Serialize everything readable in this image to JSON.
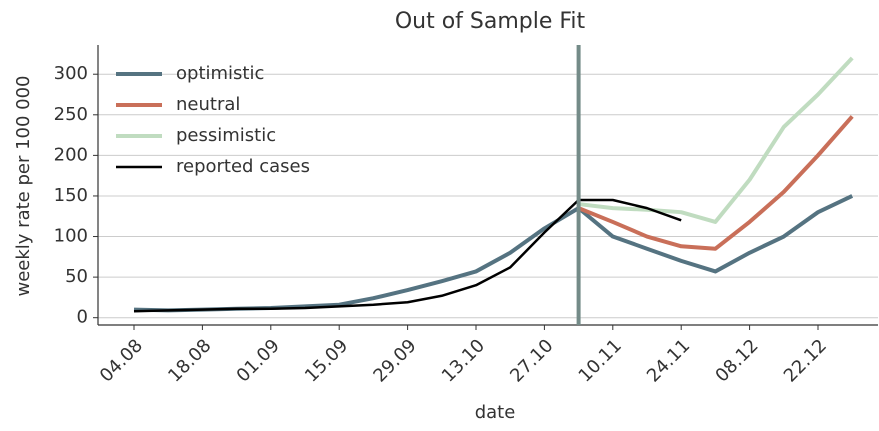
{
  "chart_data": {
    "type": "line",
    "title": "Out of Sample Fit",
    "x_label": "date",
    "y_label": "weekly rate per 100 000",
    "x": [
      "04.08",
      null,
      "18.08",
      null,
      "01.09",
      null,
      "15.09",
      null,
      "29.09",
      null,
      "13.10",
      null,
      "27.10",
      null,
      "10.11",
      null,
      "24.11",
      null,
      "08.12",
      null,
      "22.12",
      null
    ],
    "series": [
      {
        "name": "optimistic",
        "color": "#557381",
        "width": 4,
        "values": [
          10,
          9,
          10,
          11,
          12,
          14,
          16,
          24,
          34,
          45,
          57,
          80,
          110,
          135,
          100,
          85,
          70,
          57,
          80,
          100,
          130,
          150
        ]
      },
      {
        "name": "neutral",
        "color": "#c96f59",
        "width": 4,
        "values": [
          null,
          null,
          null,
          null,
          null,
          null,
          null,
          null,
          null,
          null,
          null,
          null,
          null,
          135,
          118,
          100,
          88,
          85,
          118,
          155,
          200,
          248
        ]
      },
      {
        "name": "pessimistic",
        "color": "#c0dcc0",
        "width": 4,
        "values": [
          null,
          null,
          null,
          null,
          null,
          null,
          null,
          null,
          null,
          null,
          null,
          null,
          null,
          140,
          135,
          133,
          130,
          118,
          170,
          235,
          275,
          320
        ]
      },
      {
        "name": "reported cases",
        "color": "#000000",
        "width": 2.5,
        "values": [
          8,
          9,
          10,
          11,
          11,
          12,
          14,
          16,
          19,
          27,
          40,
          62,
          105,
          145,
          145,
          135,
          120,
          null,
          null,
          null,
          null,
          null
        ]
      }
    ],
    "forecast_start": 13,
    "vline_color": "#748b88",
    "ylim": [
      -9,
      336
    ],
    "yticks": [
      0,
      50,
      100,
      150,
      200,
      250,
      300
    ],
    "grid": true,
    "legend": "upper left"
  }
}
